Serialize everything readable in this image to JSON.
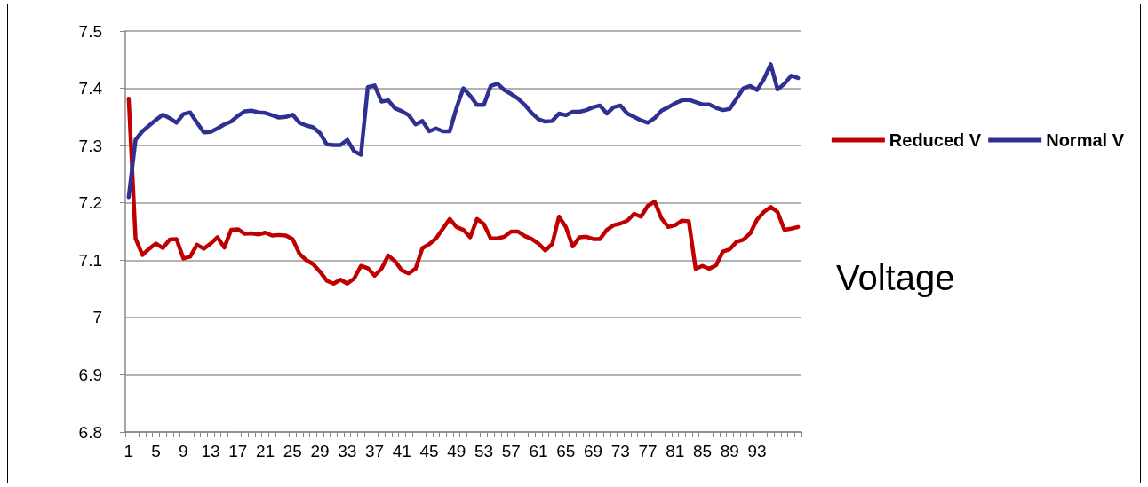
{
  "chart_data": {
    "type": "line",
    "categories": [
      "1",
      null,
      null,
      null,
      "5",
      null,
      null,
      null,
      "9",
      null,
      null,
      null,
      "13",
      null,
      null,
      null,
      "17",
      null,
      null,
      null,
      "21",
      null,
      null,
      null,
      "25",
      null,
      null,
      null,
      "29",
      null,
      null,
      null,
      "33",
      null,
      null,
      null,
      "37",
      null,
      null,
      null,
      "41",
      null,
      null,
      null,
      "45",
      null,
      null,
      null,
      "49",
      null,
      null,
      null,
      "53",
      null,
      null,
      null,
      "57",
      null,
      null,
      null,
      "61",
      null,
      null,
      null,
      "65",
      null,
      null,
      null,
      "69",
      null,
      null,
      null,
      "73",
      null,
      null,
      null,
      "77",
      null,
      null,
      null,
      "81",
      null,
      null,
      null,
      "85",
      null,
      null,
      null,
      "89",
      null,
      null,
      null,
      "93",
      null,
      null,
      null,
      null,
      null,
      null
    ],
    "series": [
      {
        "name": "Reduced V",
        "color": "#c00000",
        "values": [
          7.382,
          7.138,
          7.109,
          7.12,
          7.129,
          7.121,
          7.136,
          7.137,
          7.103,
          7.106,
          7.127,
          7.12,
          7.129,
          7.14,
          7.122,
          7.153,
          7.154,
          7.146,
          7.147,
          7.145,
          7.148,
          7.143,
          7.144,
          7.143,
          7.137,
          7.111,
          7.1,
          7.093,
          7.08,
          7.064,
          7.059,
          7.066,
          7.059,
          7.068,
          7.09,
          7.086,
          7.073,
          7.085,
          7.108,
          7.098,
          7.082,
          7.077,
          7.085,
          7.121,
          7.128,
          7.138,
          7.155,
          7.172,
          7.158,
          7.153,
          7.14,
          7.172,
          7.163,
          7.138,
          7.138,
          7.141,
          7.15,
          7.15,
          7.142,
          7.137,
          7.129,
          7.117,
          7.128,
          7.176,
          7.158,
          7.124,
          7.14,
          7.141,
          7.137,
          7.137,
          7.153,
          7.161,
          7.164,
          7.169,
          7.181,
          7.176,
          7.195,
          7.202,
          7.173,
          7.158,
          7.161,
          7.169,
          7.168,
          7.085,
          7.09,
          7.085,
          7.091,
          7.115,
          7.119,
          7.132,
          7.136,
          7.147,
          7.171,
          7.184,
          7.193,
          7.184,
          7.153,
          7.155,
          7.158
        ]
      },
      {
        "name": "Normal V",
        "color": "#2e3192",
        "values": [
          7.21,
          7.31,
          7.325,
          7.335,
          7.345,
          7.354,
          7.348,
          7.34,
          7.355,
          7.358,
          7.34,
          7.323,
          7.324,
          7.33,
          7.337,
          7.342,
          7.352,
          7.36,
          7.361,
          7.358,
          7.357,
          7.353,
          7.349,
          7.35,
          7.354,
          7.34,
          7.335,
          7.332,
          7.322,
          7.302,
          7.301,
          7.301,
          7.31,
          7.29,
          7.284,
          7.402,
          7.405,
          7.377,
          7.379,
          7.365,
          7.36,
          7.353,
          7.337,
          7.343,
          7.325,
          7.33,
          7.325,
          7.325,
          7.366,
          7.4,
          7.387,
          7.371,
          7.371,
          7.404,
          7.408,
          7.397,
          7.39,
          7.382,
          7.371,
          7.357,
          7.346,
          7.342,
          7.343,
          7.356,
          7.353,
          7.359,
          7.359,
          7.362,
          7.367,
          7.37,
          7.356,
          7.367,
          7.37,
          7.356,
          7.35,
          7.344,
          7.34,
          7.348,
          7.361,
          7.367,
          7.374,
          7.379,
          7.38,
          7.376,
          7.372,
          7.372,
          7.366,
          7.362,
          7.364,
          7.382,
          7.4,
          7.404,
          7.397,
          7.416,
          7.442,
          7.398,
          7.408,
          7.422,
          7.418
        ]
      }
    ],
    "ylim": [
      6.8,
      7.5
    ],
    "yticks": [
      6.8,
      6.9,
      7,
      7.1,
      7.2,
      7.3,
      7.4,
      7.5
    ],
    "grid": "y",
    "legend": "right",
    "marker": "none",
    "line_style": "solid",
    "annotations": [
      "Voltage"
    ]
  }
}
